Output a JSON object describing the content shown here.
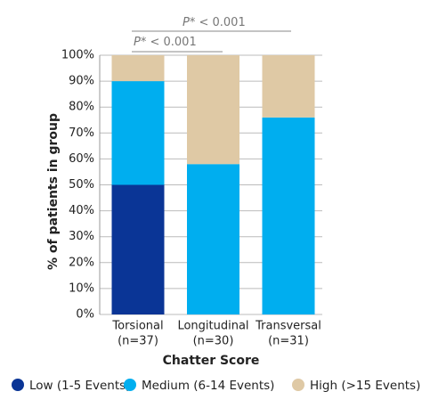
{
  "chart_data": {
    "type": "stacked_bar",
    "y_label": "% of patients in group",
    "x_label": "Chatter Score",
    "categories": [
      [
        "Torsional",
        "(n=37)"
      ],
      [
        "Longitudinal",
        "(n=30)"
      ],
      [
        "Transversal",
        "(n=31)"
      ]
    ],
    "series": [
      {
        "name": "Low (1-5 Events)",
        "color": "#0a3596",
        "values": [
          50,
          0,
          0
        ]
      },
      {
        "name": "Medium (6-14 Events)",
        "color": "#00aeef",
        "values": [
          40,
          58,
          76
        ]
      },
      {
        "name": "High (>15 Events)",
        "color": "#dfc9a5",
        "values": [
          10,
          42,
          24
        ]
      }
    ],
    "ylim": [
      0,
      100
    ],
    "yticks": [
      {
        "value": 0,
        "label": "0%"
      },
      {
        "value": 10,
        "label": "10%"
      },
      {
        "value": 20,
        "label": "20%"
      },
      {
        "value": 30,
        "label": "30%"
      },
      {
        "value": 40,
        "label": "40%"
      },
      {
        "value": 50,
        "label": "50%"
      },
      {
        "value": 60,
        "label": "60%"
      },
      {
        "value": 70,
        "label": "70%"
      },
      {
        "value": 80,
        "label": "80%"
      },
      {
        "value": 90,
        "label": "90%"
      },
      {
        "value": 100,
        "label": "100%"
      }
    ],
    "grid": true,
    "annotations": [
      {
        "prefix": "P*",
        "text": " < 0.001"
      },
      {
        "prefix": "P*",
        "text": " < 0.001"
      }
    ],
    "legend": "bottom"
  }
}
